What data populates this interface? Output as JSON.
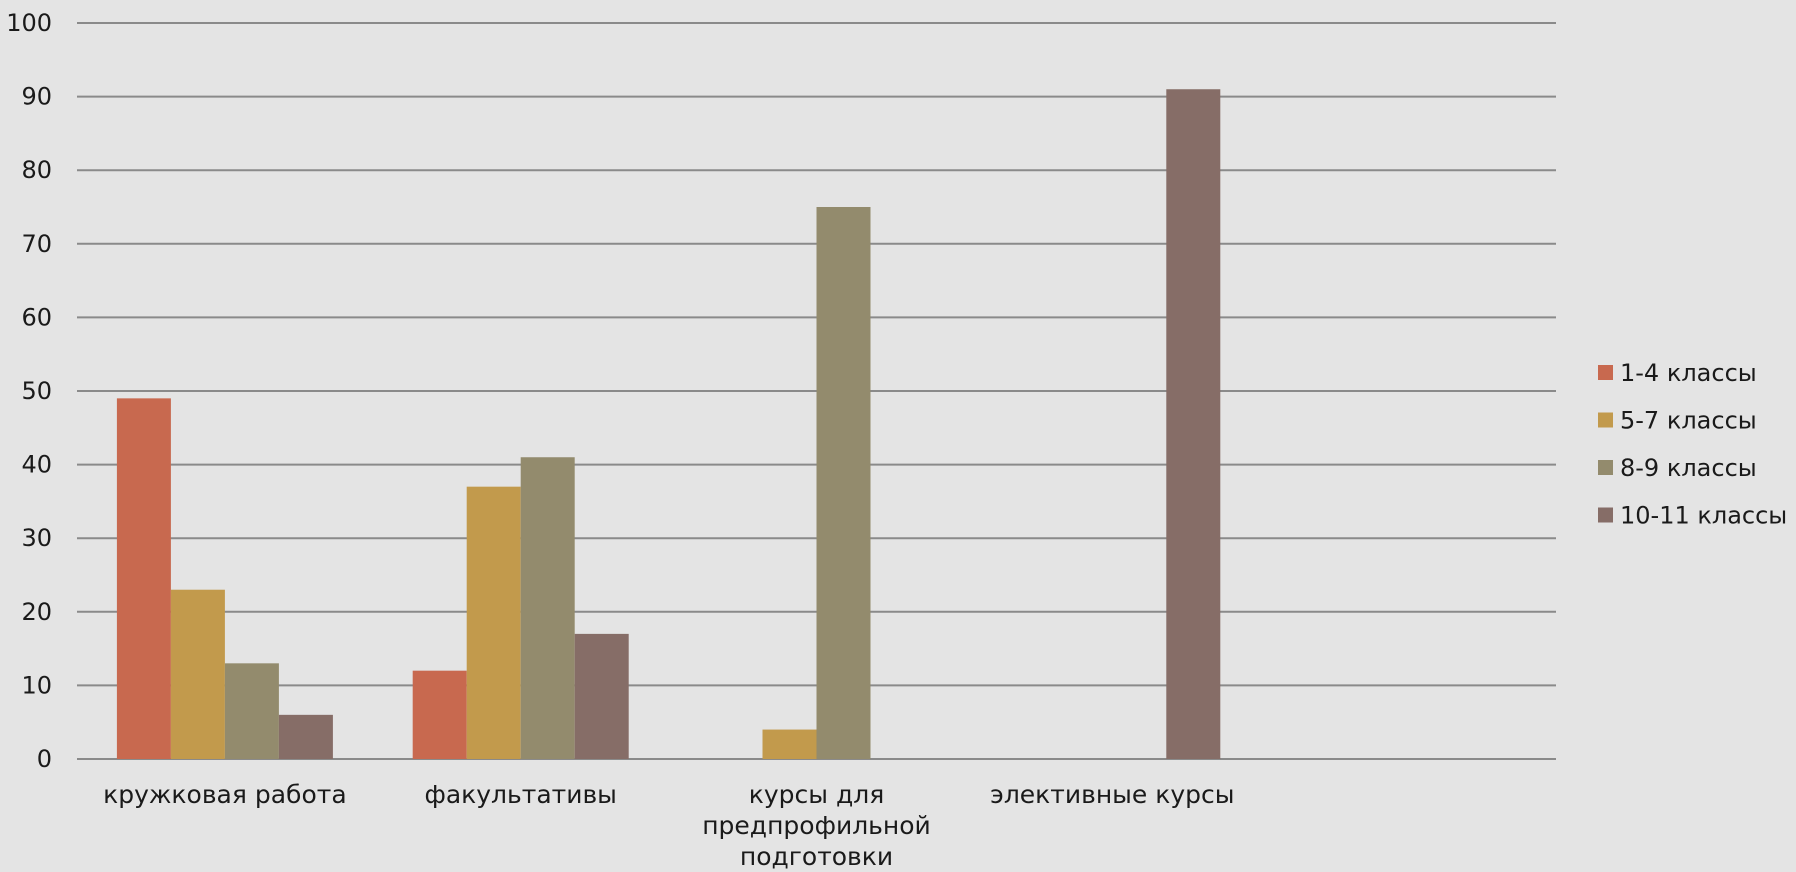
{
  "chart_data": {
    "type": "bar",
    "categories": [
      [
        "кружковая работа"
      ],
      [
        "факультативы"
      ],
      [
        "курсы для",
        "предпрофильной",
        "подготовки"
      ],
      [
        "элективные курсы"
      ],
      []
    ],
    "series": [
      {
        "name": "1-4 классы",
        "color": "#c8694f",
        "values": [
          49,
          12,
          0,
          0,
          0
        ]
      },
      {
        "name": "5-7 классы",
        "color": "#c29a4c",
        "values": [
          23,
          37,
          4,
          0,
          0
        ]
      },
      {
        "name": "8-9 классы",
        "color": "#938b6d",
        "values": [
          13,
          41,
          75,
          0,
          0
        ]
      },
      {
        "name": "10-11 классы",
        "color": "#866d67",
        "values": [
          6,
          17,
          0,
          91,
          0
        ]
      }
    ],
    "ylim": [
      0,
      100
    ],
    "yticks": [
      0,
      10,
      20,
      30,
      40,
      50,
      60,
      70,
      80,
      90,
      100
    ],
    "grid": true,
    "legend": "right",
    "gridColor": "#8a8a8a"
  }
}
